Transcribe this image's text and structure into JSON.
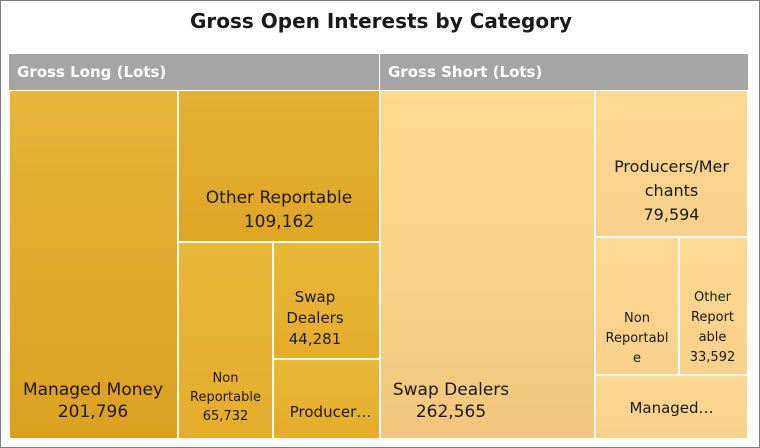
{
  "chart_data": {
    "type": "treemap",
    "title": "Gross Open Interests by Category",
    "groups": [
      {
        "name": "Gross Long (Lots)",
        "items": [
          {
            "name": "Managed Money",
            "value": 201796,
            "display": "201,796"
          },
          {
            "name": "Other Reportable",
            "value": 109162,
            "display": "109,162"
          },
          {
            "name": "Non Reportable",
            "value": 65732,
            "display": "65,732"
          },
          {
            "name": "Swap Dealers",
            "value": 44281,
            "display": "44,281"
          },
          {
            "name": "Producers/Merchants",
            "display_name": "Producer…"
          }
        ]
      },
      {
        "name": "Gross Short (Lots)",
        "items": [
          {
            "name": "Swap Dealers",
            "value": 262565,
            "display": "262,565"
          },
          {
            "name": "Producers/Merchants",
            "value": 79594,
            "display": "79,594"
          },
          {
            "name": "Non Reportable",
            "display_name": "Non Reportable"
          },
          {
            "name": "Other Reportable",
            "value": 33592,
            "display": "33,592"
          },
          {
            "name": "Managed Money",
            "display_name": "Managed…"
          }
        ]
      }
    ],
    "labels": {
      "long_mm": "Managed Money\n201,796",
      "long_or": "Other Reportable\n109,162",
      "long_nr": "Non\nReportable\n65,732",
      "long_sd": "Swap\nDealers\n44,281",
      "long_pm": "Producer…",
      "short_sd": "Swap Dealers\n262,565",
      "short_pm": "Producers/Mer\nchants\n79,594",
      "short_nr": "Non\nReportabl\ne",
      "short_or": "Other\nReport\nable\n33,592",
      "short_mm": "Managed…"
    }
  }
}
